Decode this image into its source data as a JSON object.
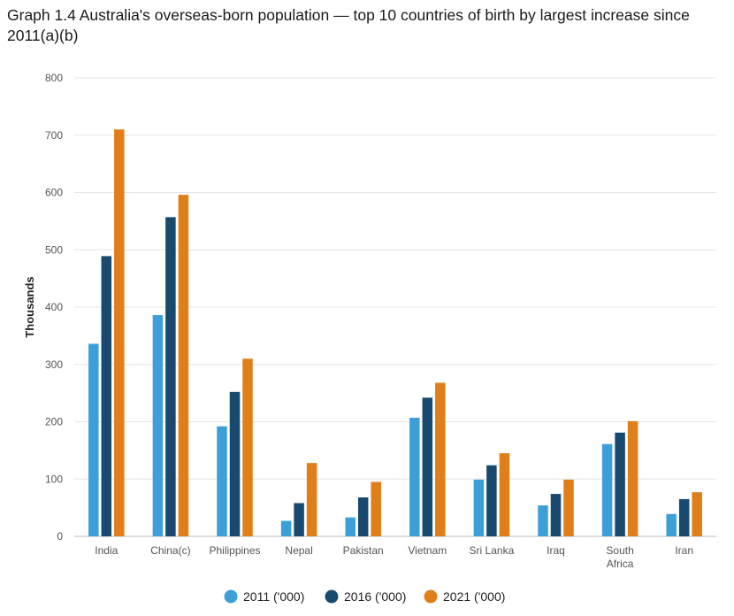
{
  "chart_data": {
    "type": "bar",
    "title": "Graph 1.4 Australia's overseas-born population — top 10 countries of birth by largest increase since 2011(a)(b)",
    "ylabel": "Thousands",
    "xlabel": "",
    "ylim": [
      0,
      800
    ],
    "yticks": [
      0,
      100,
      200,
      300,
      400,
      500,
      600,
      700,
      800
    ],
    "grid": true,
    "legend_position": "bottom",
    "categories": [
      [
        "India"
      ],
      [
        "China(c)"
      ],
      [
        "Philippines"
      ],
      [
        "Nepal"
      ],
      [
        "Pakistan"
      ],
      [
        "Vietnam"
      ],
      [
        "Sri Lanka"
      ],
      [
        "Iraq"
      ],
      [
        "South",
        "Africa"
      ],
      [
        "Iran"
      ]
    ],
    "series": [
      {
        "name": "2011 ('000)",
        "color": "#3d9fd8",
        "values": [
          336,
          386,
          192,
          27,
          33,
          207,
          99,
          54,
          161,
          39
        ]
      },
      {
        "name": "2016 ('000)",
        "color": "#174a6e",
        "values": [
          489,
          557,
          252,
          58,
          68,
          242,
          124,
          74,
          181,
          65
        ]
      },
      {
        "name": "2021 ('000)",
        "color": "#e07f1a",
        "values": [
          710,
          596,
          310,
          128,
          95,
          268,
          145,
          99,
          201,
          77
        ]
      }
    ]
  }
}
